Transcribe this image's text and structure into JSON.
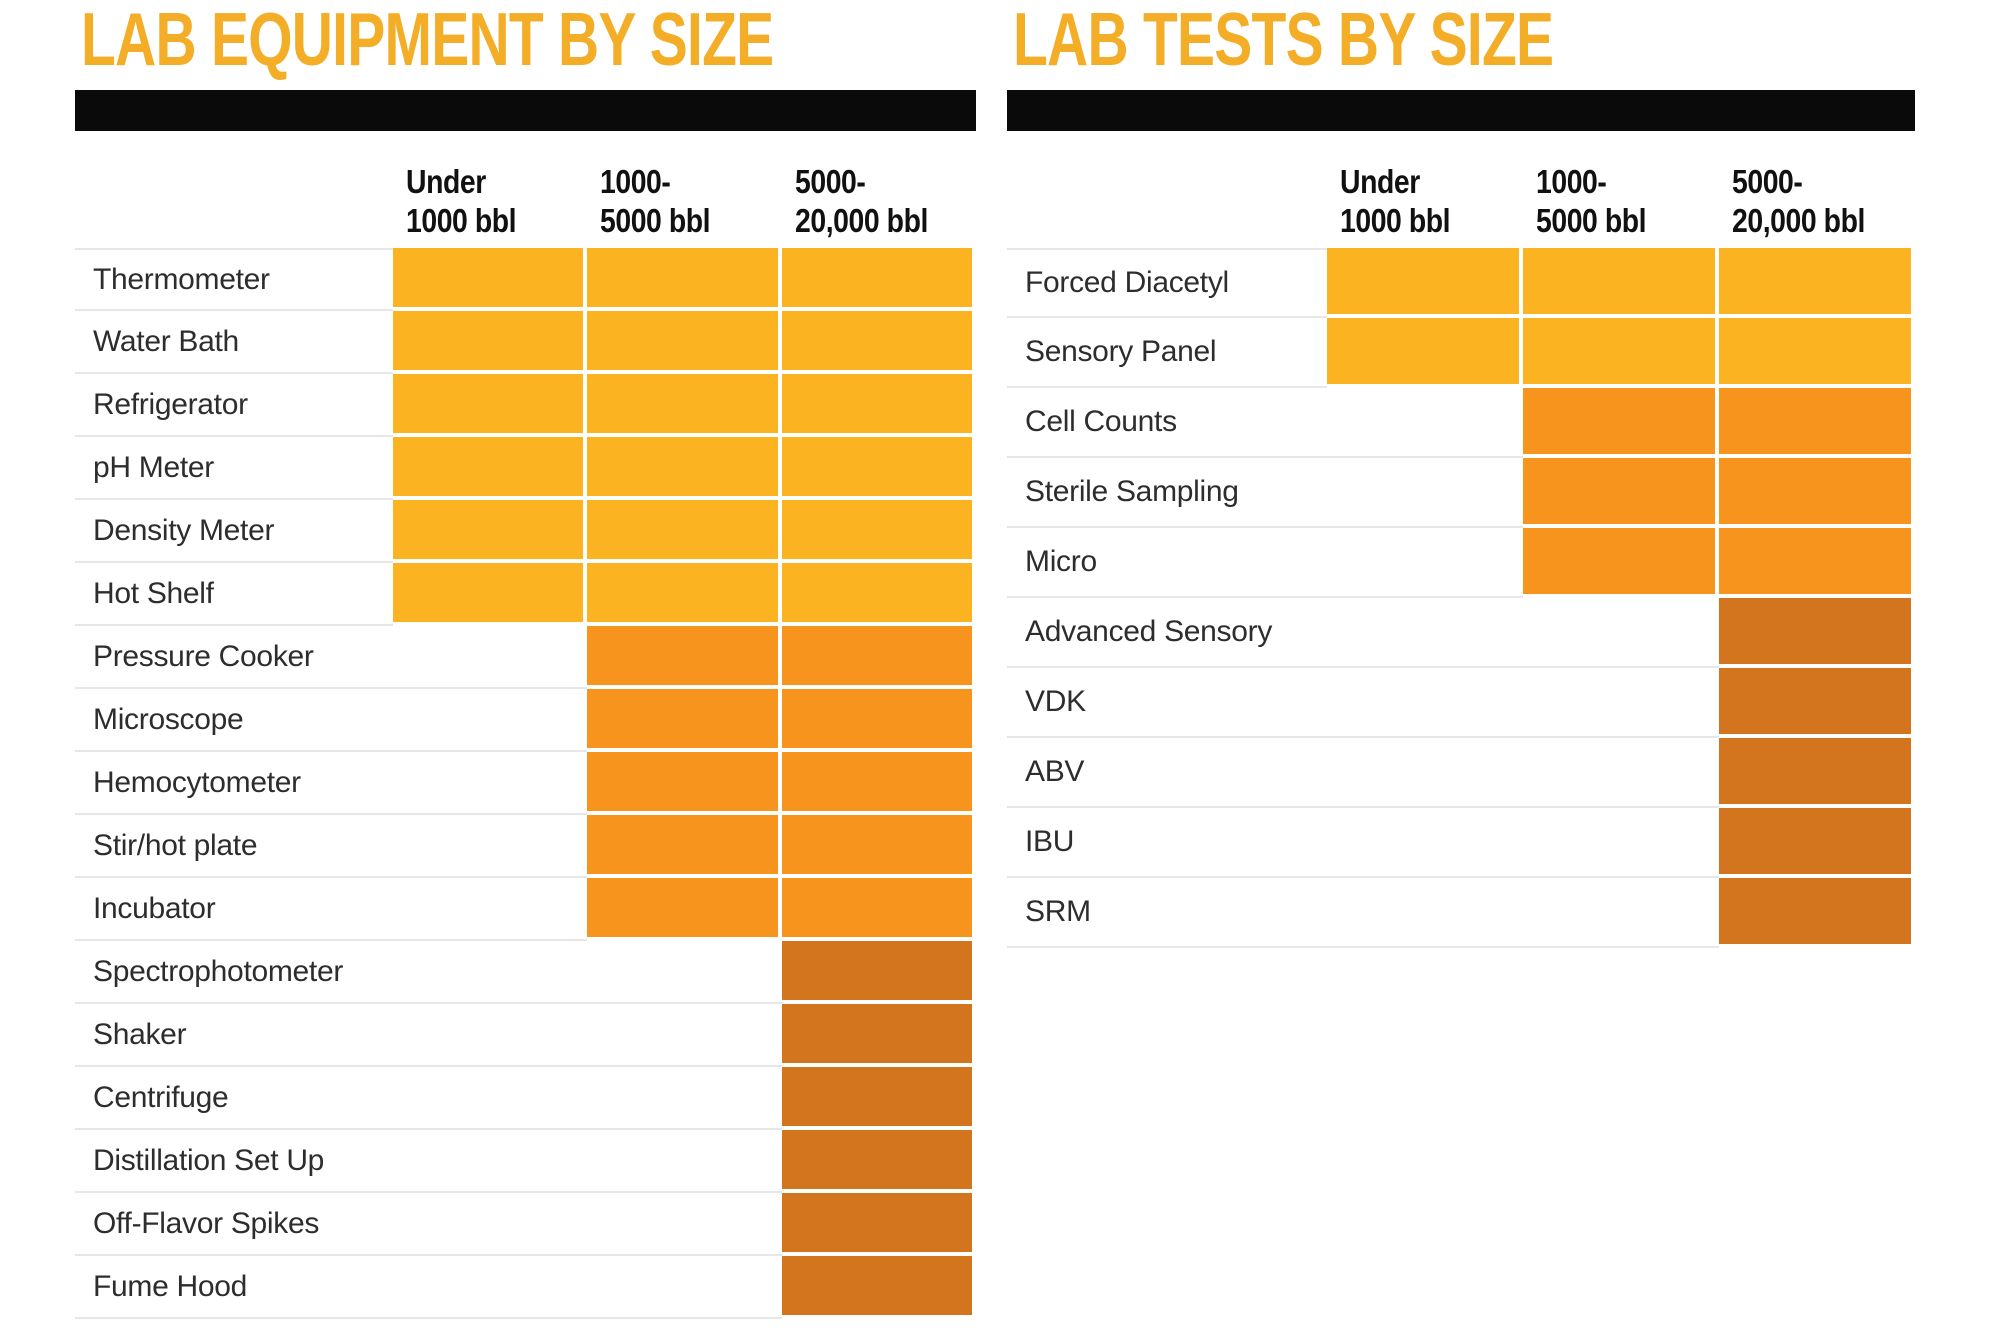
{
  "colors": {
    "yellow": "#FBB322",
    "orange": "#F6941E",
    "dark_orange": "#D2751E",
    "title_gold": "#F3AD27",
    "bar_black": "#0A0A0A",
    "hairline": "#E7E7E7",
    "label_text": "#2D2D2D",
    "header_text": "#111111"
  },
  "tables": [
    {
      "id": "equipment",
      "title": "LAB EQUIPMENT BY SIZE",
      "columns": [
        {
          "line1": "Under",
          "line2": "1000 bbl"
        },
        {
          "line1": "1000-",
          "line2": "5000 bbl"
        },
        {
          "line1": "5000-",
          "line2": "20,000 bbl"
        }
      ],
      "rows": [
        {
          "label": "Thermometer",
          "cells": [
            "yellow",
            "yellow",
            "yellow"
          ]
        },
        {
          "label": "Water Bath",
          "cells": [
            "yellow",
            "yellow",
            "yellow"
          ]
        },
        {
          "label": "Refrigerator",
          "cells": [
            "yellow",
            "yellow",
            "yellow"
          ]
        },
        {
          "label": "pH Meter",
          "cells": [
            "yellow",
            "yellow",
            "yellow"
          ]
        },
        {
          "label": "Density Meter",
          "cells": [
            "yellow",
            "yellow",
            "yellow"
          ]
        },
        {
          "label": "Hot Shelf",
          "cells": [
            "yellow",
            "yellow",
            "yellow"
          ]
        },
        {
          "label": "Pressure Cooker",
          "cells": [
            null,
            "orange",
            "orange"
          ]
        },
        {
          "label": "Microscope",
          "cells": [
            null,
            "orange",
            "orange"
          ]
        },
        {
          "label": "Hemocytometer",
          "cells": [
            null,
            "orange",
            "orange"
          ]
        },
        {
          "label": "Stir/hot plate",
          "cells": [
            null,
            "orange",
            "orange"
          ]
        },
        {
          "label": "Incubator",
          "cells": [
            null,
            "orange",
            "orange"
          ]
        },
        {
          "label": "Spectrophotometer",
          "cells": [
            null,
            null,
            "dark_orange"
          ]
        },
        {
          "label": "Shaker",
          "cells": [
            null,
            null,
            "dark_orange"
          ]
        },
        {
          "label": "Centrifuge",
          "cells": [
            null,
            null,
            "dark_orange"
          ]
        },
        {
          "label": "Distillation Set Up",
          "cells": [
            null,
            null,
            "dark_orange"
          ]
        },
        {
          "label": "Off-Flavor Spikes",
          "cells": [
            null,
            null,
            "dark_orange"
          ]
        },
        {
          "label": "Fume Hood",
          "cells": [
            null,
            null,
            "dark_orange"
          ]
        }
      ]
    },
    {
      "id": "tests",
      "title": "LAB TESTS BY SIZE",
      "columns": [
        {
          "line1": "Under",
          "line2": "1000 bbl"
        },
        {
          "line1": "1000-",
          "line2": "5000 bbl"
        },
        {
          "line1": "5000-",
          "line2": "20,000 bbl"
        }
      ],
      "rows": [
        {
          "label": "Forced Diacetyl",
          "cells": [
            "yellow",
            "yellow",
            "yellow"
          ]
        },
        {
          "label": "Sensory Panel",
          "cells": [
            "yellow",
            "yellow",
            "yellow"
          ]
        },
        {
          "label": "Cell Counts",
          "cells": [
            null,
            "orange",
            "orange"
          ]
        },
        {
          "label": "Sterile Sampling",
          "cells": [
            null,
            "orange",
            "orange"
          ]
        },
        {
          "label": "Micro",
          "cells": [
            null,
            "orange",
            "orange"
          ]
        },
        {
          "label": "Advanced Sensory",
          "cells": [
            null,
            null,
            "dark_orange"
          ]
        },
        {
          "label": "VDK",
          "cells": [
            null,
            null,
            "dark_orange"
          ]
        },
        {
          "label": "ABV",
          "cells": [
            null,
            null,
            "dark_orange"
          ]
        },
        {
          "label": "IBU",
          "cells": [
            null,
            null,
            "dark_orange"
          ]
        },
        {
          "label": "SRM",
          "cells": [
            null,
            null,
            "dark_orange"
          ]
        }
      ]
    }
  ],
  "chart_data": [
    {
      "type": "table",
      "title": "LAB EQUIPMENT BY SIZE",
      "columns": [
        "Under 1000 bbl",
        "1000-5000 bbl",
        "5000-20,000 bbl"
      ],
      "rows": [
        {
          "label": "Thermometer",
          "values": [
            1,
            1,
            1
          ]
        },
        {
          "label": "Water Bath",
          "values": [
            1,
            1,
            1
          ]
        },
        {
          "label": "Refrigerator",
          "values": [
            1,
            1,
            1
          ]
        },
        {
          "label": "pH Meter",
          "values": [
            1,
            1,
            1
          ]
        },
        {
          "label": "Density Meter",
          "values": [
            1,
            1,
            1
          ]
        },
        {
          "label": "Hot Shelf",
          "values": [
            1,
            1,
            1
          ]
        },
        {
          "label": "Pressure Cooker",
          "values": [
            0,
            1,
            1
          ]
        },
        {
          "label": "Microscope",
          "values": [
            0,
            1,
            1
          ]
        },
        {
          "label": "Hemocytometer",
          "values": [
            0,
            1,
            1
          ]
        },
        {
          "label": "Stir/hot plate",
          "values": [
            0,
            1,
            1
          ]
        },
        {
          "label": "Incubator",
          "values": [
            0,
            1,
            1
          ]
        },
        {
          "label": "Spectrophotometer",
          "values": [
            0,
            0,
            1
          ]
        },
        {
          "label": "Shaker",
          "values": [
            0,
            0,
            1
          ]
        },
        {
          "label": "Centrifuge",
          "values": [
            0,
            0,
            1
          ]
        },
        {
          "label": "Distillation Set Up",
          "values": [
            0,
            0,
            1
          ]
        },
        {
          "label": "Off-Flavor Spikes",
          "values": [
            0,
            0,
            1
          ]
        },
        {
          "label": "Fume Hood",
          "values": [
            0,
            0,
            1
          ]
        }
      ],
      "cell_colors": {
        "all_sizes": "#FBB322",
        "from_1000_bbl": "#F6941E",
        "from_5000_bbl": "#D2751E"
      },
      "legend_position": "none",
      "grid": false
    },
    {
      "type": "table",
      "title": "LAB TESTS BY SIZE",
      "columns": [
        "Under 1000 bbl",
        "1000-5000 bbl",
        "5000-20,000 bbl"
      ],
      "rows": [
        {
          "label": "Forced Diacetyl",
          "values": [
            1,
            1,
            1
          ]
        },
        {
          "label": "Sensory Panel",
          "values": [
            1,
            1,
            1
          ]
        },
        {
          "label": "Cell Counts",
          "values": [
            0,
            1,
            1
          ]
        },
        {
          "label": "Sterile Sampling",
          "values": [
            0,
            1,
            1
          ]
        },
        {
          "label": "Micro",
          "values": [
            0,
            1,
            1
          ]
        },
        {
          "label": "Advanced Sensory",
          "values": [
            0,
            0,
            1
          ]
        },
        {
          "label": "VDK",
          "values": [
            0,
            0,
            1
          ]
        },
        {
          "label": "ABV",
          "values": [
            0,
            0,
            1
          ]
        },
        {
          "label": "IBU",
          "values": [
            0,
            0,
            1
          ]
        },
        {
          "label": "SRM",
          "values": [
            0,
            0,
            1
          ]
        }
      ],
      "cell_colors": {
        "all_sizes": "#FBB322",
        "from_1000_bbl": "#F6941E",
        "from_5000_bbl": "#D2751E"
      },
      "legend_position": "none",
      "grid": false
    }
  ]
}
